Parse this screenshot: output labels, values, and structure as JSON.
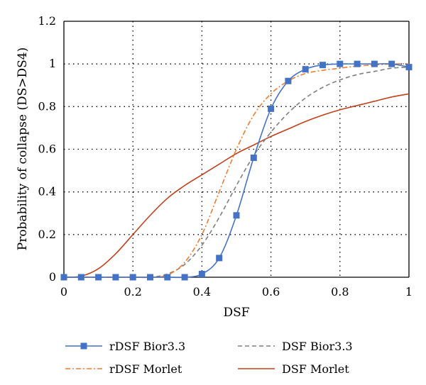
{
  "chart_data": {
    "type": "line",
    "title": "",
    "xlabel": "DSF",
    "ylabel": "Probability of collapse (DS>DS4)",
    "xlim": [
      0,
      1
    ],
    "ylim": [
      0,
      1.2
    ],
    "x_ticks": [
      0,
      0.2,
      0.4,
      0.6,
      0.8,
      1
    ],
    "y_ticks": [
      0,
      0.2,
      0.4,
      0.6,
      0.8,
      1,
      1.2
    ],
    "x_tick_labels": [
      "0",
      "0.2",
      "0.4",
      "0.6",
      "0.8",
      "1"
    ],
    "y_tick_labels": [
      "0",
      "0.2",
      "0.4",
      "0.6",
      "0.8",
      "1",
      "1.2"
    ],
    "grid": "dotted",
    "legend_position": "bottom",
    "series": [
      {
        "name": "rDSF Bior3.3",
        "color": "#4472c4",
        "style": "solid",
        "marker": "square",
        "x": [
          0,
          0.05,
          0.1,
          0.15,
          0.2,
          0.25,
          0.3,
          0.35,
          0.4,
          0.45,
          0.5,
          0.55,
          0.6,
          0.65,
          0.7,
          0.75,
          0.8,
          0.85,
          0.9,
          0.95,
          1.0
        ],
        "y": [
          0,
          0,
          0,
          0,
          0,
          0,
          0,
          0,
          0.015,
          0.09,
          0.29,
          0.56,
          0.79,
          0.92,
          0.975,
          0.995,
          1.0,
          1.0,
          1.0,
          1.0,
          0.985
        ]
      },
      {
        "name": "DSF Bior3.3",
        "color": "#7f7f7f",
        "style": "dashed",
        "marker": "none",
        "x": [
          0,
          0.05,
          0.1,
          0.15,
          0.2,
          0.25,
          0.3,
          0.35,
          0.4,
          0.45,
          0.5,
          0.55,
          0.6,
          0.65,
          0.7,
          0.75,
          0.8,
          0.85,
          0.9,
          0.95,
          1.0
        ],
        "y": [
          0,
          0,
          0,
          0,
          0,
          0,
          0.015,
          0.06,
          0.15,
          0.28,
          0.43,
          0.57,
          0.68,
          0.77,
          0.84,
          0.89,
          0.925,
          0.95,
          0.965,
          0.98,
          0.985
        ]
      },
      {
        "name": "rDSF Morlet",
        "color": "#ed7d31",
        "style": "dashdot",
        "marker": "none",
        "x": [
          0,
          0.05,
          0.1,
          0.15,
          0.2,
          0.25,
          0.3,
          0.35,
          0.4,
          0.45,
          0.5,
          0.55,
          0.6,
          0.65,
          0.7,
          0.75,
          0.8,
          0.85,
          0.9,
          0.95,
          1.0
        ],
        "y": [
          0,
          0,
          0,
          0,
          0,
          0,
          0.01,
          0.07,
          0.2,
          0.4,
          0.6,
          0.76,
          0.86,
          0.92,
          0.955,
          0.97,
          0.98,
          0.99,
          0.995,
          1.0,
          1.0
        ]
      },
      {
        "name": "DSF Morlet",
        "color": "#c0411b",
        "style": "solid",
        "marker": "none",
        "x": [
          0,
          0.05,
          0.1,
          0.15,
          0.2,
          0.25,
          0.3,
          0.35,
          0.4,
          0.45,
          0.5,
          0.55,
          0.6,
          0.65,
          0.7,
          0.75,
          0.8,
          0.85,
          0.9,
          0.95,
          1.0
        ],
        "y": [
          0,
          0.005,
          0.04,
          0.11,
          0.2,
          0.29,
          0.37,
          0.43,
          0.48,
          0.53,
          0.58,
          0.62,
          0.66,
          0.695,
          0.73,
          0.76,
          0.785,
          0.805,
          0.825,
          0.845,
          0.86
        ]
      }
    ]
  }
}
